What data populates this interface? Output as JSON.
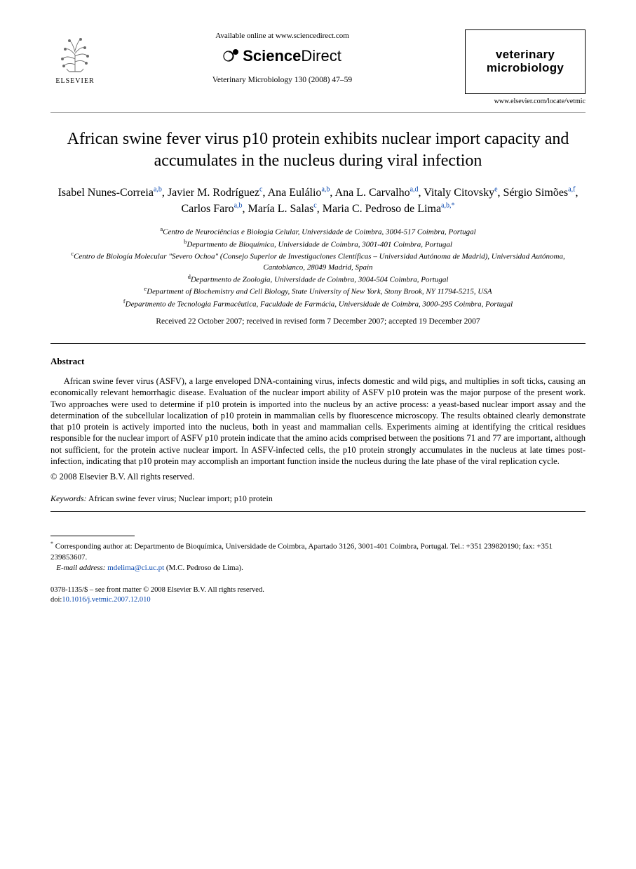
{
  "header": {
    "publisher_name": "ELSEVIER",
    "available_line": "Available online at www.sciencedirect.com",
    "sciencedirect_prefix": "Science",
    "sciencedirect_suffix": "Direct",
    "citation": "Veterinary Microbiology 130 (2008) 47–59",
    "journal_box_line1": "veterinary",
    "journal_box_line2": "microbiology",
    "journal_url": "www.elsevier.com/locate/vetmic"
  },
  "title": "African swine fever virus p10 protein exhibits nuclear import capacity and accumulates in the nucleus during viral infection",
  "authors": [
    {
      "name": "Isabel Nunes-Correia",
      "marks": "a,b"
    },
    {
      "name": "Javier M. Rodríguez",
      "marks": "c"
    },
    {
      "name": "Ana Eulálio",
      "marks": "a,b"
    },
    {
      "name": "Ana L. Carvalho",
      "marks": "a,d"
    },
    {
      "name": "Vitaly Citovsky",
      "marks": "e"
    },
    {
      "name": "Sérgio Simões",
      "marks": "a,f"
    },
    {
      "name": "Carlos Faro",
      "marks": "a,b"
    },
    {
      "name": "María L. Salas",
      "marks": "c"
    },
    {
      "name": "Maria C. Pedroso de Lima",
      "marks": "a,b,*"
    }
  ],
  "affiliations": [
    {
      "marker": "a",
      "text": "Centro de Neurociências e Biologia Celular, Universidade de Coimbra, 3004-517 Coimbra, Portugal"
    },
    {
      "marker": "b",
      "text": "Departmento de Bioquímica, Universidade de Coimbra, 3001-401 Coimbra, Portugal"
    },
    {
      "marker": "c",
      "text": "Centro de Biología Molecular \"Severo Ochoa\" (Consejo Superior de Investigaciones Científicas – Universidad Autónoma de Madrid), Universidad Autónoma, Cantoblanco, 28049 Madrid, Spain"
    },
    {
      "marker": "d",
      "text": "Departmento de Zoologia, Universidade de Coimbra, 3004-504 Coimbra, Portugal"
    },
    {
      "marker": "e",
      "text": "Department of Biochemistry and Cell Biology, State University of New York, Stony Brook, NY 11794-5215, USA"
    },
    {
      "marker": "f",
      "text": "Departmento de Tecnologia Farmacêutica, Faculdade de Farmácia, Universidade de Coimbra, 3000-295 Coimbra, Portugal"
    }
  ],
  "dates": "Received 22 October 2007; received in revised form 7 December 2007; accepted 19 December 2007",
  "abstract": {
    "heading": "Abstract",
    "body": "African swine fever virus (ASFV), a large enveloped DNA-containing virus, infects domestic and wild pigs, and multiplies in soft ticks, causing an economically relevant hemorrhagic disease. Evaluation of the nuclear import ability of ASFV p10 protein was the major purpose of the present work. Two approaches were used to determine if p10 protein is imported into the nucleus by an active process: a yeast-based nuclear import assay and the determination of the subcellular localization of p10 protein in mammalian cells by fluorescence microscopy. The results obtained clearly demonstrate that p10 protein is actively imported into the nucleus, both in yeast and mammalian cells. Experiments aiming at identifying the critical residues responsible for the nuclear import of ASFV p10 protein indicate that the amino acids comprised between the positions 71 and 77 are important, although not sufficient, for the protein active nuclear import. In ASFV-infected cells, the p10 protein strongly accumulates in the nucleus at late times post-infection, indicating that p10 protein may accomplish an important function inside the nucleus during the late phase of the viral replication cycle.",
    "copyright": "© 2008 Elsevier B.V. All rights reserved."
  },
  "keywords": {
    "label": "Keywords:",
    "text": "African swine fever virus; Nuclear import; p10 protein"
  },
  "footnote": {
    "corr": "Corresponding author at: Departmento de Bioquímica, Universidade de Coimbra, Apartado 3126, 3001-401 Coimbra, Portugal. Tel.: +351 239820190; fax: +351 239853607.",
    "email_label": "E-mail address:",
    "email": "mdelima@ci.uc.pt",
    "email_suffix": "(M.C. Pedroso de Lima)."
  },
  "footer": {
    "issn_line": "0378-1135/$ – see front matter © 2008 Elsevier B.V. All rights reserved.",
    "doi_label": "doi:",
    "doi": "10.1016/j.vetmic.2007.12.010"
  }
}
